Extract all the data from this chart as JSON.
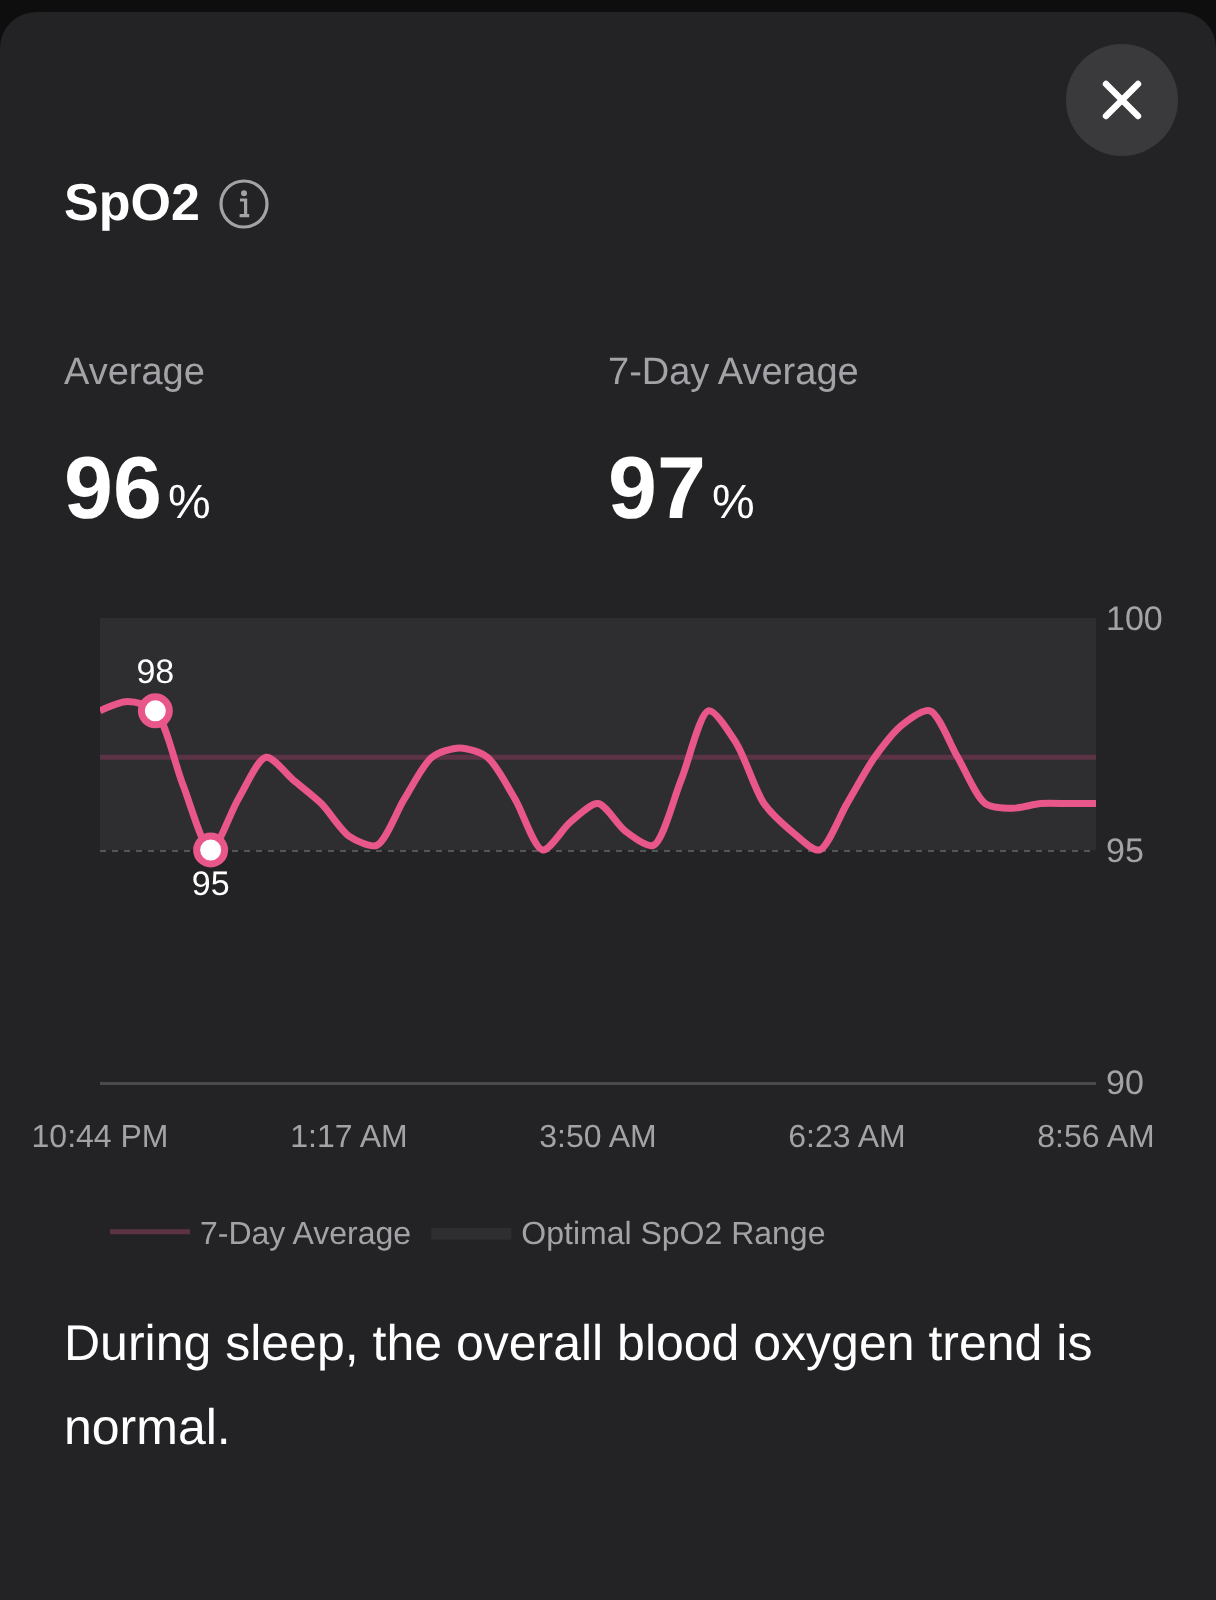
{
  "chart_data": {
    "type": "line",
    "title": "SpO2",
    "annotations": [
      "Average",
      "96%",
      "7-Day Average",
      "97%",
      "During sleep, the overall blood oxygen trend is normal."
    ],
    "categories": [
      "10:44 PM",
      null,
      null,
      null,
      null,
      null,
      null,
      null,
      null,
      "1:17 AM",
      null,
      null,
      null,
      null,
      null,
      null,
      null,
      null,
      "3:50 AM",
      null,
      null,
      null,
      null,
      null,
      null,
      null,
      null,
      "6:23 AM",
      null,
      null,
      null,
      null,
      null,
      null,
      null,
      null,
      "8:56 AM"
    ],
    "ylim": [
      90,
      100
    ],
    "yticks": [
      90,
      95,
      100
    ],
    "grid": "y",
    "legend": "bottom",
    "series": [
      {
        "color": "#e8568a",
        "values": [
          98.0,
          98.2,
          98.0,
          96.4,
          95.0,
          96.1,
          97.0,
          96.5,
          96.0,
          95.3,
          95.1,
          96.1,
          97.0,
          97.2,
          97.0,
          96.1,
          95.0,
          95.6,
          96.0,
          95.4,
          95.1,
          96.5,
          98.0,
          97.3,
          96.0,
          95.4,
          95.0,
          96.0,
          97.0,
          97.7,
          98.0,
          97.0,
          96.0,
          95.9,
          96.0,
          96.0,
          96.0
        ]
      },
      {
        "type": "scatter",
        "marker": "circle",
        "color": "#e8568a",
        "values": [
          null,
          null,
          98,
          null,
          95,
          null,
          null,
          null,
          null,
          null,
          null,
          null,
          null,
          null,
          null,
          null,
          null,
          null,
          null,
          null,
          null,
          null,
          null,
          null,
          null,
          null,
          null,
          null,
          null,
          null,
          null,
          null,
          null,
          null,
          null,
          null,
          null
        ],
        "value_labels": [
          null,
          null,
          "98",
          null,
          "95",
          null,
          null,
          null,
          null,
          null,
          null,
          null,
          null,
          null,
          null,
          null,
          null,
          null,
          null,
          null,
          null,
          null,
          null,
          null,
          null,
          null,
          null,
          null,
          null,
          null,
          null,
          null,
          null,
          null,
          null,
          null,
          null
        ]
      }
    ],
    "ref_lines": [
      {
        "axis": "y",
        "value": 97,
        "label": "7-Day Average",
        "color": "#5c3345"
      }
    ],
    "bands": [
      {
        "axis": "y",
        "from": 95,
        "to": 100,
        "label": "Optimal SpO2 Range",
        "color": "#2e2e31"
      }
    ]
  }
}
